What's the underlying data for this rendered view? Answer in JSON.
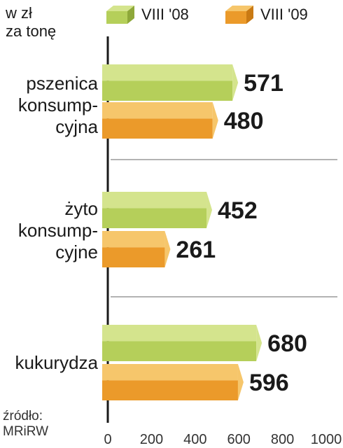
{
  "unit_label_1": "w zł",
  "unit_label_2": "za tonę",
  "source_1": "źródło:",
  "source_2": "MRiRW",
  "colors": {
    "green": "#b5cf5a",
    "green_light": "#d4e48d",
    "green_dark": "#8ea83a",
    "orange": "#eb9a2a",
    "orange_light": "#f6c66b",
    "orange_dark": "#c97a14"
  },
  "chart_data": {
    "type": "bar",
    "orientation": "horizontal",
    "categories": [
      [
        "pszenica",
        "konsump-",
        "cyjna"
      ],
      [
        "żyto",
        "konsump-",
        "cyjne"
      ],
      [
        "kukurydza"
      ]
    ],
    "series": [
      {
        "name": "VIII '08",
        "values": [
          571,
          452,
          680
        ]
      },
      {
        "name": "VIII '09",
        "values": [
          480,
          261,
          596
        ]
      }
    ],
    "xlim": [
      0,
      1000
    ],
    "xticks": [
      0,
      200,
      400,
      600,
      800,
      1000
    ],
    "legend": "top"
  }
}
